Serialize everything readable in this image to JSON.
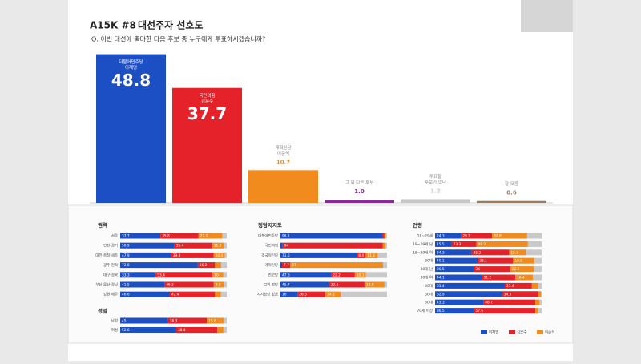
{
  "header": {
    "title": "A15K #8",
    "subtitle_title": "대선주자 선호도",
    "question": "Q. 이번 대선에 출마한 다음 후보 중 누구에게 투표하시겠습니까?"
  },
  "legend": [
    {
      "name": "이재명",
      "color": "#1d4fc4"
    },
    {
      "name": "김문수",
      "color": "#e52129"
    },
    {
      "name": "이준석",
      "color": "#f28b1e"
    }
  ],
  "chart_data": [
    {
      "type": "bar",
      "categories": [
        [
          "더불어민주당",
          "이재명"
        ],
        [
          "국민의힘",
          "김문수"
        ],
        [
          "개혁신당",
          "이준석"
        ],
        [
          "그 외 다른 후보"
        ],
        [
          "투표할",
          "후보가 없다"
        ],
        [
          "잘 모름"
        ]
      ],
      "values": [
        48.8,
        37.7,
        10.7,
        1.0,
        1.2,
        0.6
      ],
      "value_labels": [
        "48.8",
        "37.7",
        "10.7",
        "1.0",
        "1.2",
        "0.6"
      ],
      "colors": [
        "#1d4fc4",
        "#e52129",
        "#f28b1e",
        "#8b2a98",
        "#c8c8c8",
        "#9c7c60"
      ]
    },
    {
      "type": "stacked-bar-h",
      "title": "권역",
      "categories": [
        "서울",
        "인천·경기",
        "대전·충청·세종",
        "광주·전라",
        "대구·경북",
        "부산·울산·경남",
        "강원·제주"
      ],
      "series": [
        {
          "values": [
            37.7,
            50.9,
            47.9,
            72.8,
            33.3,
            41.5,
            46.6
          ]
        },
        {
          "values": [
            35.8,
            35.4,
            39.8,
            16.2,
            53.4,
            46.3,
            42.4
          ]
        },
        {
          "values": [
            22.2,
            11.2,
            10.4,
            5.6,
            10.0,
            9.9,
            5.4
          ]
        }
      ]
    },
    {
      "type": "stacked-bar-h",
      "title": "성별",
      "categories": [
        "남성",
        "여성"
      ],
      "series": [
        {
          "values": [
            45.0,
            52.6
          ]
        },
        {
          "values": [
            36.3,
            38.4
          ]
        },
        {
          "values": [
            15.6,
            5.8
          ]
        }
      ]
    },
    {
      "type": "stacked-bar-h",
      "title": "정당지지도",
      "categories": [
        "더불어민주당",
        "국민의힘",
        "조국혁신당",
        "개혁신당",
        "진보당",
        "그외 정당",
        "지지정당 없음"
      ],
      "series": [
        {
          "values": [
            96.1,
            2.1,
            71.6,
            1.5,
            47.6,
            45.7,
            16.0
          ]
        },
        {
          "values": [
            1.5,
            94.0,
            8.4,
            7.7,
            22.2,
            33.2,
            26.3
          ]
        },
        {
          "values": [
            1.2,
            2.5,
            11.2,
            87.0,
            10.3,
            18.6,
            14.2
          ]
        }
      ]
    },
    {
      "type": "stacked-bar-h",
      "title": "연령",
      "categories": [
        "18~29세",
        "18~29세 남",
        "18~29세 여",
        "30대",
        "30대 남",
        "30대 여",
        "40대",
        "50대",
        "60대",
        "70세 이상"
      ],
      "series": [
        {
          "values": [
            24.3,
            15.5,
            34.3,
            40.1,
            36.5,
            44.1,
            65.4,
            62.9,
            45.3,
            36.5
          ]
        },
        {
          "values": [
            29.2,
            23.3,
            35.2,
            33.1,
            34.0,
            31.2,
            25.4,
            34.3,
            48.7,
            57.6
          ]
        },
        {
          "values": [
            32.8,
            48.2,
            15.7,
            19.9,
            22.2,
            16.4,
            6.2,
            2.1,
            3.9,
            2.8
          ]
        }
      ]
    }
  ]
}
